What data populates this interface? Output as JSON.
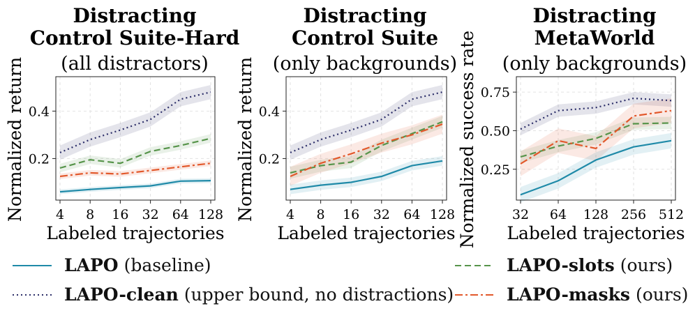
{
  "chart_data": [
    {
      "type": "line",
      "title_lines": [
        "Distracting",
        "Control Suite-Hard"
      ],
      "subtitle": "(all distractors)",
      "xlabel": "Labeled trajectories",
      "ylabel": "Normalized return",
      "x": [
        4,
        8,
        16,
        32,
        64,
        128
      ],
      "x_ticks": [
        "4",
        "8",
        "16",
        "32",
        "64",
        "128"
      ],
      "y_ticks": [
        0.2,
        0.4
      ],
      "y_tick_labels": [
        "0.2",
        "0.4"
      ],
      "ylim": [
        0.025,
        0.545
      ],
      "grid": true,
      "series": [
        {
          "name": "LAPO-clean",
          "values": [
            0.225,
            0.28,
            0.32,
            0.365,
            0.45,
            0.48
          ],
          "band": 0.03
        },
        {
          "name": "LAPO-slots",
          "values": [
            0.16,
            0.195,
            0.18,
            0.23,
            0.255,
            0.285
          ],
          "band": 0.018
        },
        {
          "name": "LAPO-masks",
          "values": [
            0.125,
            0.14,
            0.135,
            0.15,
            0.165,
            0.18
          ],
          "band": 0.012
        },
        {
          "name": "LAPO",
          "values": [
            0.06,
            0.07,
            0.078,
            0.085,
            0.105,
            0.107
          ],
          "band": 0.01
        }
      ]
    },
    {
      "type": "line",
      "title_lines": [
        "Distracting",
        "Control Suite"
      ],
      "subtitle": "(only backgrounds)",
      "xlabel": "Labeled trajectories",
      "ylabel": "Normalized return",
      "x": [
        4,
        8,
        16,
        32,
        64,
        128
      ],
      "x_ticks": [
        "4",
        "8",
        "16",
        "32",
        "64",
        "128"
      ],
      "y_ticks": [
        0.2,
        0.4
      ],
      "y_tick_labels": [
        "0.2",
        "0.4"
      ],
      "ylim": [
        0.025,
        0.545
      ],
      "grid": true,
      "series": [
        {
          "name": "LAPO-clean",
          "values": [
            0.225,
            0.28,
            0.32,
            0.365,
            0.45,
            0.48
          ],
          "band": 0.03
        },
        {
          "name": "LAPO-slots",
          "values": [
            0.14,
            0.17,
            0.185,
            0.255,
            0.305,
            0.355
          ],
          "band": 0.025
        },
        {
          "name": "LAPO-masks",
          "values": [
            0.125,
            0.18,
            0.22,
            0.265,
            0.3,
            0.345
          ],
          "band": 0.04
        },
        {
          "name": "LAPO",
          "values": [
            0.07,
            0.088,
            0.1,
            0.125,
            0.17,
            0.19
          ],
          "band": 0.02
        }
      ]
    },
    {
      "type": "line",
      "title_lines": [
        "Distracting",
        "MetaWorld"
      ],
      "subtitle": "(only backgrounds)",
      "xlabel": "Labeled trajectories",
      "ylabel": "Normalized success rate",
      "x": [
        32,
        64,
        128,
        256,
        512
      ],
      "x_ticks": [
        "32",
        "64",
        "128",
        "256",
        "512"
      ],
      "y_ticks": [
        0.25,
        0.5,
        0.75
      ],
      "y_tick_labels": [
        "0.25",
        "0.50",
        "0.75"
      ],
      "ylim": [
        0.05,
        0.85
      ],
      "grid": true,
      "series": [
        {
          "name": "LAPO-clean",
          "values": [
            0.51,
            0.63,
            0.65,
            0.71,
            0.695
          ],
          "band": 0.04
        },
        {
          "name": "LAPO-slots",
          "values": [
            0.33,
            0.4,
            0.45,
            0.545,
            0.55
          ],
          "band": 0.04
        },
        {
          "name": "LAPO-masks",
          "values": [
            0.285,
            0.435,
            0.385,
            0.595,
            0.63
          ],
          "band": 0.08
        },
        {
          "name": "LAPO",
          "values": [
            0.085,
            0.175,
            0.31,
            0.395,
            0.435
          ],
          "band": 0.05
        }
      ]
    }
  ],
  "styles": {
    "LAPO": {
      "color": "#1f8aa8",
      "dash": ""
    },
    "LAPO-clean": {
      "color": "#2b2d68",
      "dash": "2,4"
    },
    "LAPO-slots": {
      "color": "#56944a",
      "dash": "9,5"
    },
    "LAPO-masks": {
      "color": "#e2582b",
      "dash": "11,4,3,4"
    }
  },
  "legend": [
    {
      "name": "LAPO",
      "note": "(baseline)"
    },
    {
      "name": "LAPO-clean",
      "note": "(upper bound, no distractions)"
    },
    {
      "name": "LAPO-slots",
      "note": "(ours)"
    },
    {
      "name": "LAPO-masks",
      "note": "(ours)"
    }
  ]
}
